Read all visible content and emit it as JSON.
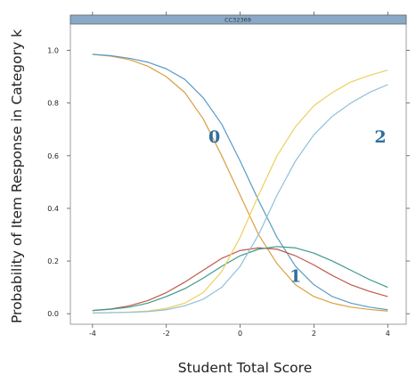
{
  "chart_data": {
    "type": "line",
    "panel_title": "CC32369",
    "xlabel": "Student Total Score",
    "ylabel": "Probability of Item Response in Category k",
    "xlim": [
      -4.6,
      4.5
    ],
    "ylim": [
      -0.04,
      1.1
    ],
    "xticks": [
      -4,
      -2,
      0,
      2,
      4
    ],
    "xtick_labels": [
      "-4",
      "-2",
      "0",
      "2",
      "4"
    ],
    "yticks": [
      0.0,
      0.2,
      0.4,
      0.6,
      0.8,
      1.0
    ],
    "ytick_labels": [
      "0.0",
      "0.2",
      "0.4",
      "0.6",
      "0.8",
      "1.0"
    ],
    "grid": false,
    "colors": {
      "panel_strip": "#8aa9c8",
      "label_color": "#2e6f9e"
    },
    "x": [
      -4,
      -3.5,
      -3,
      -2.5,
      -2,
      -1.5,
      -1,
      -0.5,
      0,
      0.5,
      1,
      1.5,
      2,
      2.5,
      3,
      3.5,
      4
    ],
    "series": [
      {
        "color": "#d9a043",
        "values": [
          0.985,
          0.978,
          0.965,
          0.94,
          0.9,
          0.84,
          0.74,
          0.6,
          0.45,
          0.3,
          0.19,
          0.11,
          0.065,
          0.04,
          0.025,
          0.016,
          0.01
        ]
      },
      {
        "color": "#5b9bc4",
        "values": [
          0.985,
          0.98,
          0.97,
          0.955,
          0.93,
          0.89,
          0.82,
          0.72,
          0.58,
          0.43,
          0.29,
          0.18,
          0.11,
          0.065,
          0.04,
          0.025,
          0.015
        ]
      },
      {
        "color": "#c0584a",
        "values": [
          0.012,
          0.018,
          0.03,
          0.05,
          0.08,
          0.12,
          0.165,
          0.21,
          0.24,
          0.25,
          0.245,
          0.22,
          0.185,
          0.145,
          0.11,
          0.085,
          0.065
        ]
      },
      {
        "color": "#3e9a8a",
        "values": [
          0.012,
          0.017,
          0.025,
          0.04,
          0.065,
          0.095,
          0.135,
          0.18,
          0.22,
          0.245,
          0.255,
          0.25,
          0.23,
          0.2,
          0.165,
          0.13,
          0.1
        ]
      },
      {
        "color": "#ecd05e",
        "values": [
          0.003,
          0.004,
          0.006,
          0.01,
          0.02,
          0.04,
          0.08,
          0.16,
          0.29,
          0.45,
          0.6,
          0.71,
          0.79,
          0.84,
          0.88,
          0.905,
          0.925
        ]
      },
      {
        "color": "#8fc0d8",
        "values": [
          0.003,
          0.004,
          0.005,
          0.008,
          0.015,
          0.03,
          0.055,
          0.1,
          0.18,
          0.3,
          0.45,
          0.58,
          0.68,
          0.75,
          0.8,
          0.84,
          0.87
        ]
      }
    ],
    "annotations": [
      {
        "text": "0",
        "x": -0.7,
        "y": 0.65
      },
      {
        "text": "1",
        "x": 1.5,
        "y": 0.12
      },
      {
        "text": "2",
        "x": 3.8,
        "y": 0.65
      }
    ]
  }
}
